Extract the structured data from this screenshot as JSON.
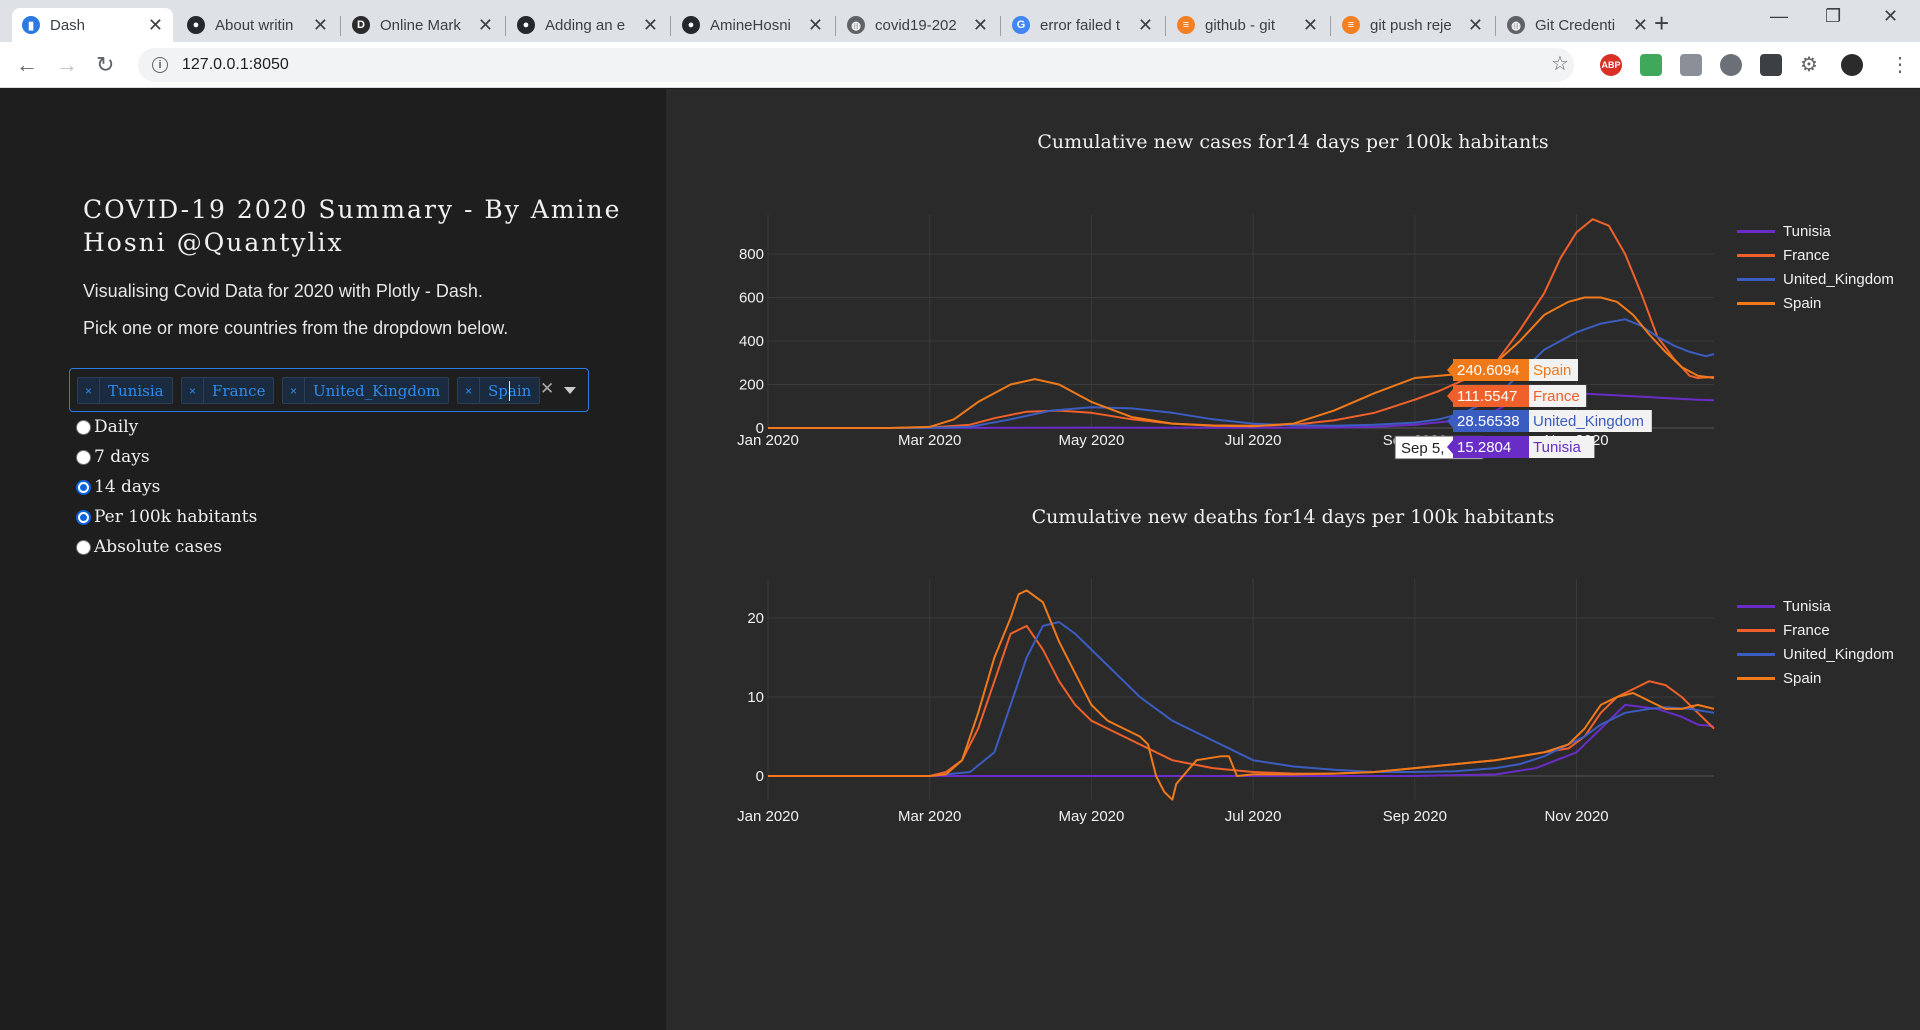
{
  "browser": {
    "tabs": [
      {
        "title": "Dash",
        "favicon": "dash-icon",
        "active": true
      },
      {
        "title": "About writin",
        "favicon": "github-icon"
      },
      {
        "title": "Online Mark",
        "favicon": "dillinger-icon"
      },
      {
        "title": "Adding an e",
        "favicon": "github-icon"
      },
      {
        "title": "AmineHosni",
        "favicon": "github-icon"
      },
      {
        "title": "covid19-202",
        "favicon": "globe-icon"
      },
      {
        "title": "error failed t",
        "favicon": "google-icon"
      },
      {
        "title": "github - git",
        "favicon": "stackoverflow-icon"
      },
      {
        "title": "git push reje",
        "favicon": "stackoverflow-icon"
      },
      {
        "title": "Git Credenti",
        "favicon": "globe-icon"
      }
    ],
    "url": "127.0.0.1:8050"
  },
  "sidebar": {
    "title": "COVID-19 2020 Summary - By Amine Hosni @Quantylix",
    "line1": "Visualising Covid Data for 2020 with Plotly - Dash.",
    "line2": "Pick one or more countries from the dropdown below.",
    "selected_countries": [
      "Tunisia",
      "France",
      "United_Kingdom",
      "Spain"
    ],
    "period_options": [
      {
        "label": "Daily",
        "checked": false
      },
      {
        "label": "7 days",
        "checked": false
      },
      {
        "label": "14 days",
        "checked": true
      }
    ],
    "scale_options": [
      {
        "label": "Per 100k habitants",
        "checked": true
      },
      {
        "label": "Absolute cases",
        "checked": false
      }
    ]
  },
  "colors": {
    "Tunisia": "#6a2cc7",
    "France": "#f0602a",
    "United_Kingdom": "#3b5cc0",
    "Spain": "#f07a1a"
  },
  "chart_data": [
    {
      "type": "line",
      "title": "Cumulative new cases for14 days per 100k habitants",
      "x_ticks": [
        "Jan 2020",
        "Mar 2020",
        "May 2020",
        "Jul 2020",
        "Sep 2020",
        "Nov 2020"
      ],
      "y_ticks": [
        0,
        200,
        400,
        600,
        800
      ],
      "ylim": [
        0,
        980
      ],
      "x_months": [
        1,
        12.7
      ],
      "series": [
        {
          "name": "Tunisia",
          "x": [
            1,
            3,
            4,
            5,
            6,
            7,
            8,
            8.5,
            9,
            9.4,
            10,
            10.3,
            10.6,
            11,
            11.5,
            12,
            12.5,
            12.7
          ],
          "y": [
            0,
            0,
            1,
            2,
            1,
            1,
            2,
            5,
            15,
            30,
            80,
            140,
            170,
            160,
            150,
            140,
            130,
            128
          ]
        },
        {
          "name": "France",
          "x": [
            1,
            2.5,
            3,
            3.5,
            3.8,
            4.2,
            4.6,
            5,
            5.5,
            6,
            6.5,
            7,
            7.5,
            8,
            8.5,
            9,
            9.3,
            9.6,
            10,
            10.3,
            10.6,
            10.8,
            11,
            11.2,
            11.4,
            11.6,
            11.8,
            12,
            12.2,
            12.4,
            12.5,
            12.7
          ],
          "y": [
            0,
            0,
            2,
            15,
            45,
            75,
            80,
            70,
            40,
            20,
            12,
            10,
            15,
            35,
            70,
            130,
            170,
            220,
            300,
            450,
            620,
            780,
            900,
            960,
            930,
            800,
            620,
            420,
            320,
            240,
            230,
            235
          ]
        },
        {
          "name": "United_Kingdom",
          "x": [
            1,
            3,
            3.5,
            4,
            4.5,
            5,
            5.5,
            6,
            6.5,
            7,
            7.5,
            8,
            8.5,
            9,
            9.3,
            9.6,
            10,
            10.3,
            10.6,
            11,
            11.3,
            11.6,
            11.8,
            12,
            12.2,
            12.4,
            12.6,
            12.7
          ],
          "y": [
            0,
            0,
            5,
            40,
            80,
            95,
            90,
            70,
            40,
            20,
            12,
            10,
            15,
            25,
            40,
            70,
            140,
            250,
            360,
            440,
            480,
            500,
            470,
            420,
            380,
            350,
            330,
            340
          ]
        },
        {
          "name": "Spain",
          "x": [
            1,
            2.5,
            3,
            3.3,
            3.6,
            4,
            4.3,
            4.6,
            5,
            5.5,
            6,
            6.5,
            7,
            7.5,
            8,
            8.5,
            9,
            9.3,
            9.6,
            10,
            10.3,
            10.6,
            10.9,
            11.1,
            11.3,
            11.5,
            11.7,
            11.9,
            12.1,
            12.3,
            12.5,
            12.7
          ],
          "y": [
            0,
            0,
            5,
            40,
            120,
            200,
            225,
            200,
            120,
            50,
            20,
            10,
            8,
            20,
            80,
            160,
            230,
            240,
            250,
            300,
            400,
            520,
            580,
            600,
            600,
            580,
            520,
            430,
            350,
            280,
            240,
            230
          ]
        }
      ],
      "tooltip": {
        "date": "Sep 5,",
        "items": [
          {
            "value": "240.6094",
            "name": "Spain"
          },
          {
            "value": "111.5547",
            "name": "France"
          },
          {
            "value": "28.56538",
            "name": "United_Kingdom"
          },
          {
            "value": "15.2804",
            "name": "Tunisia"
          }
        ]
      }
    },
    {
      "type": "line",
      "title": "Cumulative new deaths for14 days per 100k habitants",
      "x_ticks": [
        "Jan 2020",
        "Mar 2020",
        "May 2020",
        "Jul 2020",
        "Sep 2020",
        "Nov 2020"
      ],
      "y_ticks": [
        0,
        10,
        20
      ],
      "ylim": [
        -3,
        25
      ],
      "x_months": [
        1,
        12.7
      ],
      "series": [
        {
          "name": "Tunisia",
          "x": [
            1,
            4,
            6,
            8,
            9,
            10,
            10.5,
            11,
            11.3,
            11.6,
            12,
            12.3,
            12.5,
            12.7
          ],
          "y": [
            0,
            0,
            0,
            0,
            0,
            0.2,
            1,
            3,
            6,
            9,
            8.5,
            7.5,
            6.5,
            6.3
          ]
        },
        {
          "name": "France",
          "x": [
            1,
            3,
            3.2,
            3.4,
            3.6,
            3.8,
            4,
            4.2,
            4.4,
            4.6,
            4.8,
            5,
            5.2,
            5.4,
            5.6,
            6,
            6.5,
            7,
            7.5,
            8,
            8.5,
            9,
            9.5,
            10,
            10.3,
            10.6,
            10.9,
            11.1,
            11.3,
            11.5,
            11.7,
            11.9,
            12.1,
            12.3,
            12.5,
            12.7
          ],
          "y": [
            0,
            0,
            0.5,
            2,
            6,
            12,
            18,
            19,
            16,
            12,
            9,
            7,
            6,
            5,
            4,
            2,
            1,
            0.5,
            0.3,
            0.3,
            0.5,
            1,
            1.5,
            2,
            2.5,
            3,
            3.5,
            5,
            8,
            10,
            11,
            12,
            11.5,
            10,
            8,
            6
          ]
        },
        {
          "name": "United_Kingdom",
          "x": [
            1,
            3,
            3.5,
            3.8,
            4,
            4.2,
            4.4,
            4.6,
            4.8,
            5,
            5.3,
            5.6,
            6,
            6.4,
            6.8,
            7,
            7.5,
            8,
            8.5,
            9,
            9.5,
            10,
            10.3,
            10.6,
            10.9,
            11.1,
            11.3,
            11.6,
            11.9,
            12.1,
            12.4,
            12.7
          ],
          "y": [
            0,
            0,
            0.5,
            3,
            9,
            15,
            19,
            19.5,
            18,
            16,
            13,
            10,
            7,
            5,
            3,
            2,
            1.2,
            0.8,
            0.5,
            0.5,
            0.6,
            1,
            1.5,
            2.5,
            4,
            5,
            6.5,
            8,
            8.5,
            8.7,
            8.5,
            8
          ]
        },
        {
          "name": "Spain",
          "x": [
            1,
            3,
            3.2,
            3.4,
            3.6,
            3.8,
            4,
            4.1,
            4.2,
            4.4,
            4.6,
            4.8,
            5,
            5.2,
            5.4,
            5.6,
            5.7,
            5.8,
            5.9,
            6,
            6.05,
            6.3,
            6.6,
            6.7,
            6.8,
            7,
            7.5,
            8,
            8.5,
            9,
            9.5,
            10,
            10.3,
            10.6,
            10.9,
            11.1,
            11.3,
            11.5,
            11.7,
            11.9,
            12.1,
            12.3,
            12.5,
            12.7
          ],
          "y": [
            0,
            0,
            0.2,
            2,
            8,
            15,
            20,
            23,
            23.5,
            22,
            17,
            13,
            9,
            7,
            6,
            5,
            4,
            0,
            -2,
            -3,
            -1,
            2,
            2.5,
            2.5,
            0,
            0.2,
            0.2,
            0.3,
            0.5,
            1,
            1.5,
            2,
            2.5,
            3,
            4,
            6,
            9,
            10,
            10.5,
            9.5,
            8.5,
            8.5,
            9,
            8.5
          ]
        }
      ]
    }
  ]
}
